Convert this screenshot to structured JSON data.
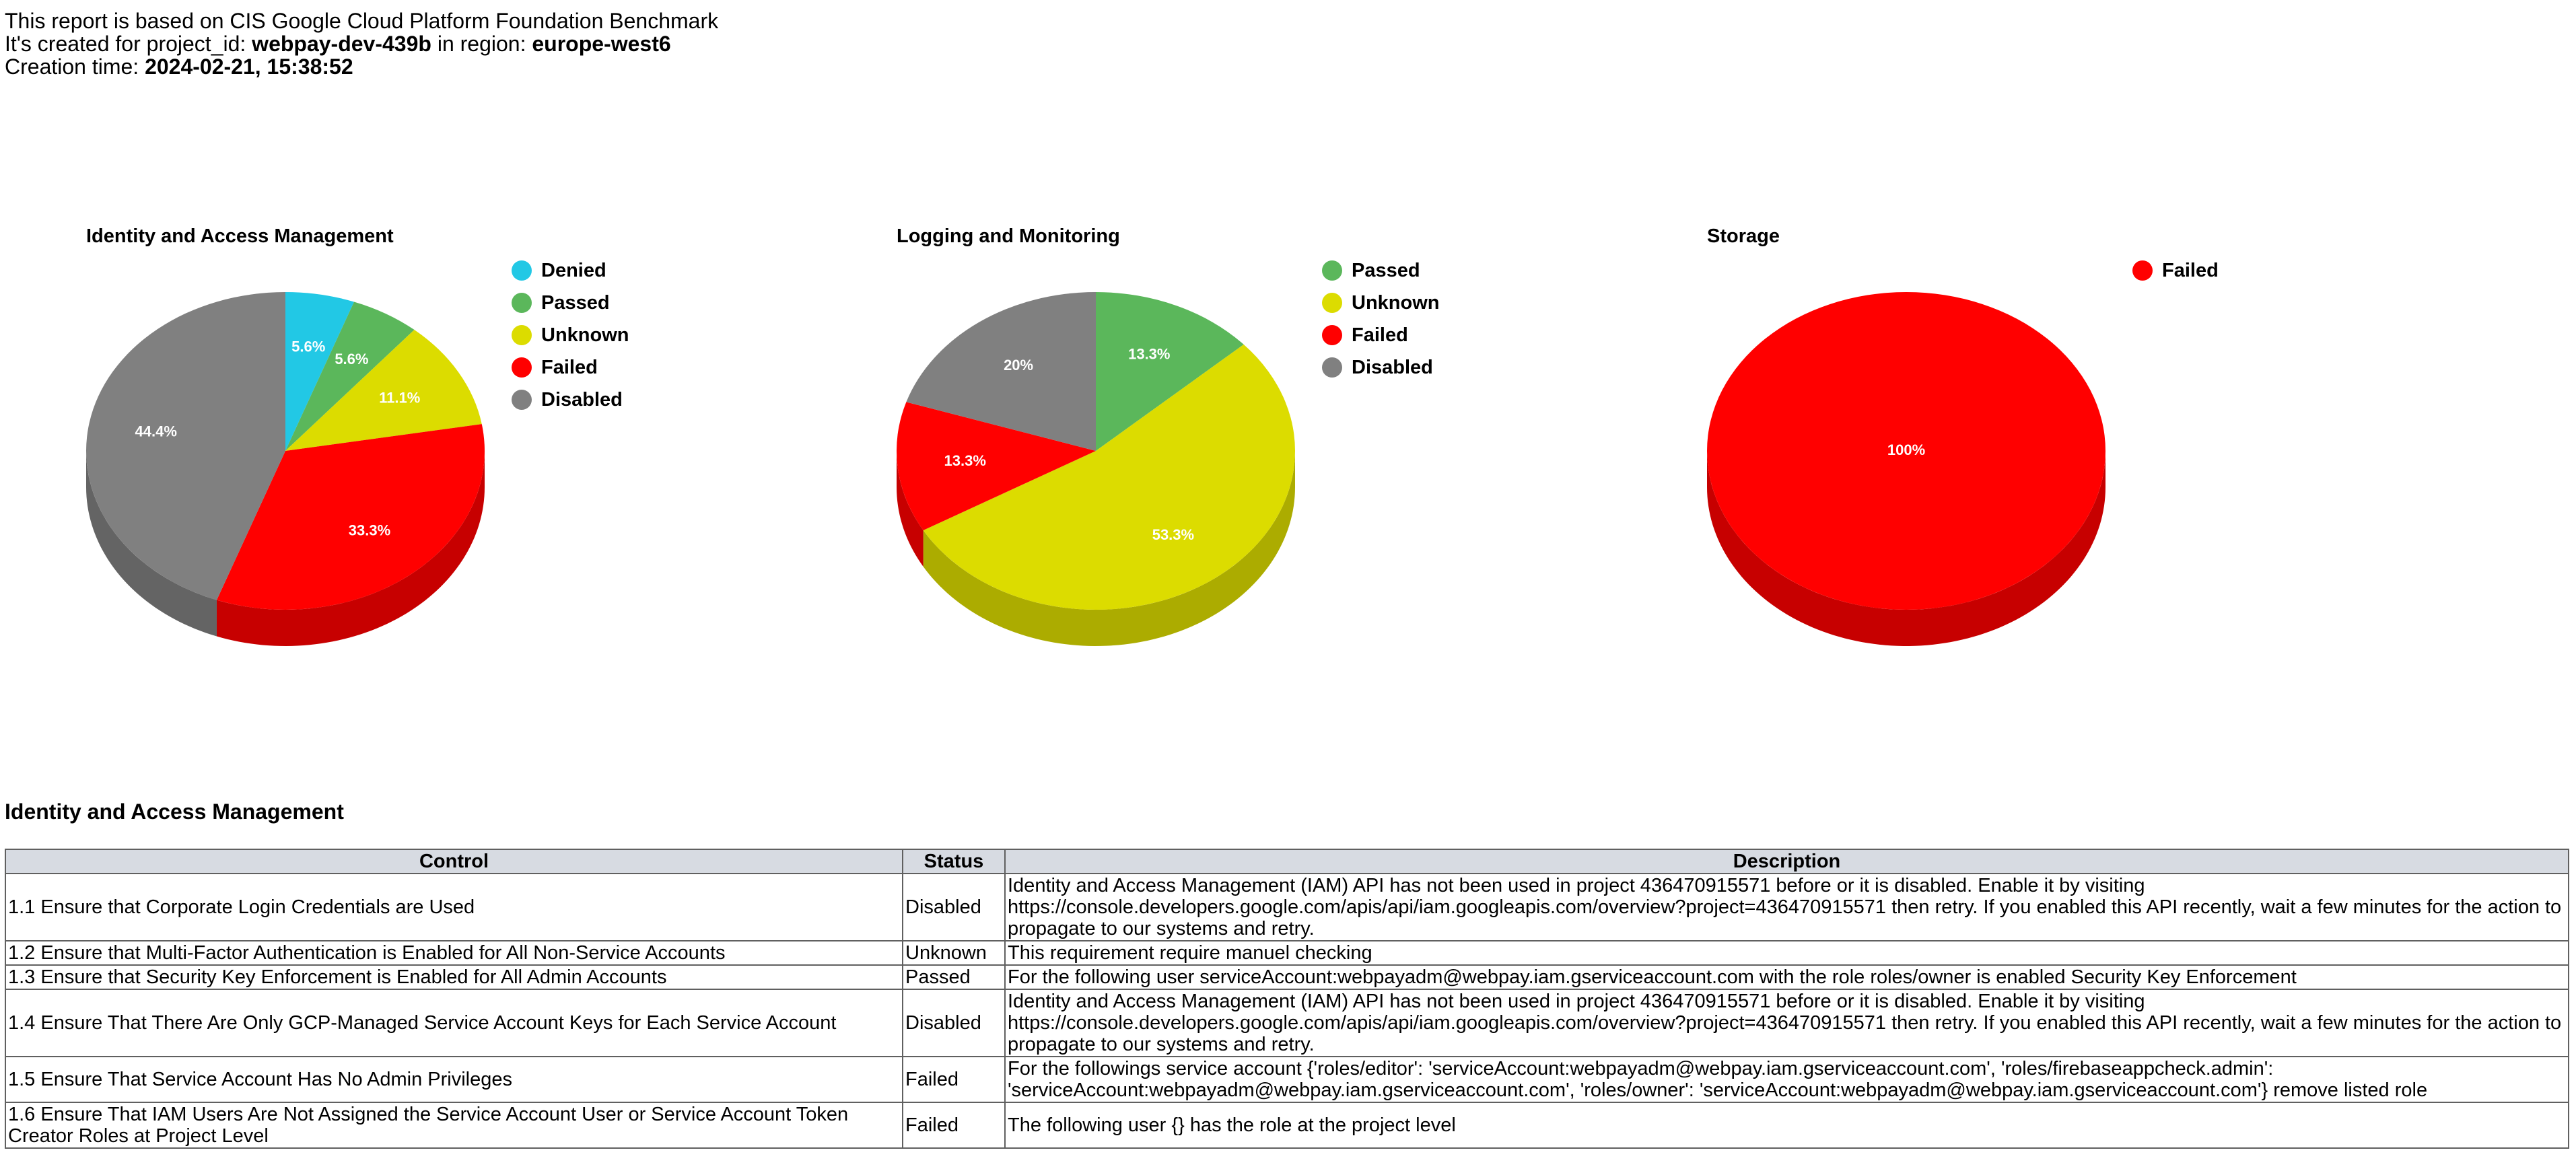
{
  "header": {
    "line1": "This report is based on CIS Google Cloud Platform Foundation Benchmark",
    "line2_prefix": "It's created for project_id: ",
    "project_id": "webpay-dev-439b",
    "line2_mid": " in region: ",
    "region": "europe-west6",
    "line3_prefix": "Creation time: ",
    "creation_time": "2024-02-21, 15:38:52"
  },
  "colors": {
    "Denied": "#22c8e5",
    "Passed": "#5bb75b",
    "Unknown": "#dcdc00",
    "Failed": "#ff0000",
    "Disabled": "#808080"
  },
  "chart_data": [
    {
      "type": "pie",
      "title": "Identity and Access Management",
      "categories": [
        "Denied",
        "Passed",
        "Unknown",
        "Failed",
        "Disabled"
      ],
      "values": [
        5.6,
        5.6,
        11.1,
        33.3,
        44.4
      ],
      "labels": [
        "5.6%",
        "5.6%",
        "11.1%",
        "33.3%",
        "44.4%"
      ],
      "legend": "top-right"
    },
    {
      "type": "pie",
      "title": "Logging and Monitoring",
      "categories": [
        "Passed",
        "Unknown",
        "Failed",
        "Disabled"
      ],
      "values": [
        13.3,
        53.3,
        13.3,
        20
      ],
      "labels": [
        "13.3%",
        "53.3%",
        "13.3%",
        "20%"
      ],
      "legend": "top-right"
    },
    {
      "type": "pie",
      "title": "Storage",
      "categories": [
        "Failed"
      ],
      "values": [
        100
      ],
      "labels": [
        "100%"
      ],
      "legend": "top-right"
    }
  ],
  "section": {
    "title": "Identity and Access Management",
    "columns": [
      "Control",
      "Status",
      "Description"
    ],
    "rows": [
      {
        "control": "1.1 Ensure that Corporate Login Credentials are Used",
        "status": "Disabled",
        "description": "Identity and Access Management (IAM) API has not been used in project 436470915571 before or it is disabled. Enable it by visiting https://console.developers.google.com/apis/api/iam.googleapis.com/overview?project=436470915571 then retry. If you enabled this API recently, wait a few minutes for the action to propagate to our systems and retry."
      },
      {
        "control": "1.2 Ensure that Multi-Factor Authentication is Enabled for All Non-Service Accounts",
        "status": "Unknown",
        "description": "This requirement require manuel checking"
      },
      {
        "control": "1.3 Ensure that Security Key Enforcement is Enabled for All Admin Accounts",
        "status": "Passed",
        "description": "For the following user serviceAccount:webpayadm@webpay.iam.gserviceaccount.com with the role roles/owner is enabled Security Key Enforcement"
      },
      {
        "control": "1.4 Ensure That There Are Only GCP-Managed Service Account Keys for Each Service Account",
        "status": "Disabled",
        "description": "Identity and Access Management (IAM) API has not been used in project 436470915571 before or it is disabled. Enable it by visiting https://console.developers.google.com/apis/api/iam.googleapis.com/overview?project=436470915571 then retry. If you enabled this API recently, wait a few minutes for the action to propagate to our systems and retry."
      },
      {
        "control": "1.5 Ensure That Service Account Has No Admin Privileges",
        "status": "Failed",
        "description": "For the followings service account {'roles/editor': 'serviceAccount:webpayadm@webpay.iam.gserviceaccount.com', 'roles/firebaseappcheck.admin': 'serviceAccount:webpayadm@webpay.iam.gserviceaccount.com', 'roles/owner': 'serviceAccount:webpayadm@webpay.iam.gserviceaccount.com'} remove listed role"
      },
      {
        "control": "1.6 Ensure That IAM Users Are Not Assigned the Service Account User or Service Account Token Creator Roles at Project Level",
        "status": "Failed",
        "description": "The following user {} has the role at the project level"
      }
    ]
  }
}
